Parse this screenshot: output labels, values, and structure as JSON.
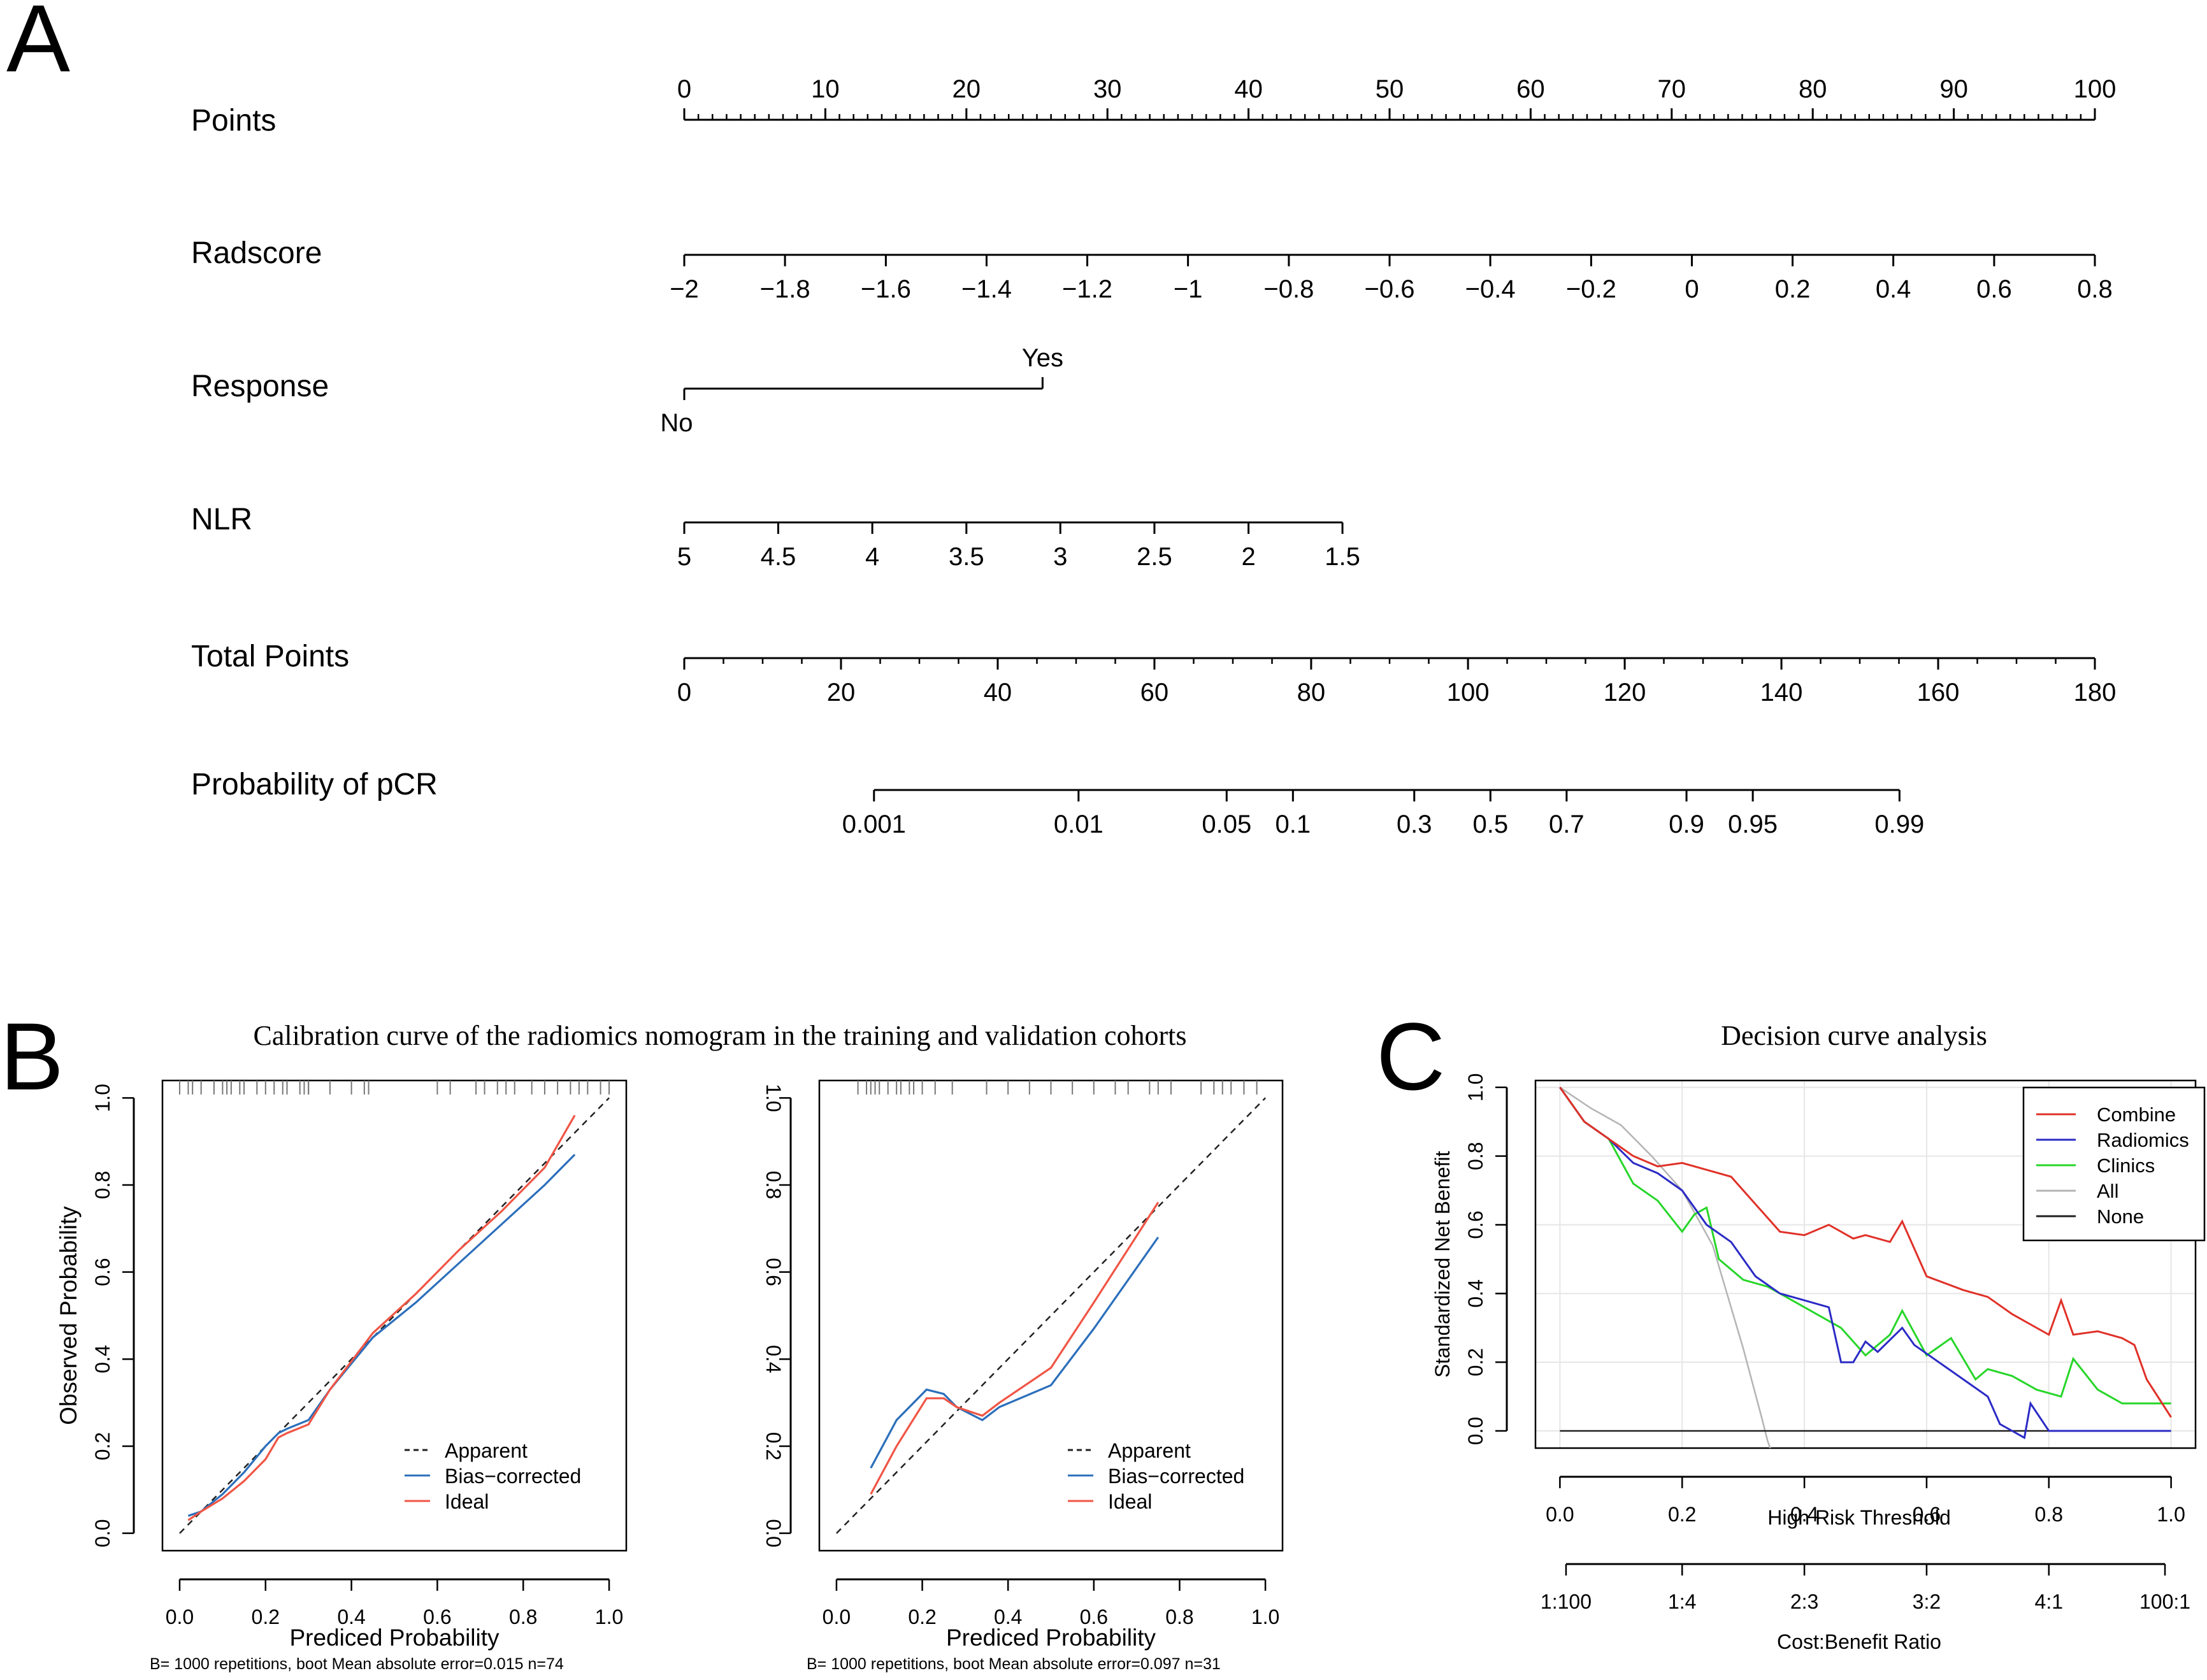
{
  "panels": {
    "a": "A",
    "b": "B",
    "c": "C"
  },
  "chart_data": [
    {
      "type": "nomogram",
      "rows": [
        {
          "label": "Points",
          "ticks": [
            "0",
            "10",
            "20",
            "30",
            "40",
            "50",
            "60",
            "70",
            "80",
            "90",
            "100"
          ],
          "tick_pos": [
            0,
            0.1,
            0.2,
            0.3,
            0.4,
            0.5,
            0.6,
            0.7,
            0.8,
            0.9,
            1.0
          ],
          "side": "above",
          "minor": 100
        },
        {
          "label": "Radscore",
          "ticks": [
            "−2",
            "−1.8",
            "−1.6",
            "−1.4",
            "−1.2",
            "−1",
            "−0.8",
            "−0.6",
            "−0.4",
            "−0.2",
            "0",
            "0.2",
            "0.4",
            "0.6",
            "0.8"
          ],
          "tick_pos": [
            0,
            0.0714,
            0.1429,
            0.2143,
            0.2857,
            0.3571,
            0.4286,
            0.5,
            0.5714,
            0.6429,
            0.7143,
            0.7857,
            0.8571,
            0.9286,
            1.0
          ],
          "side": "below",
          "minor": 0
        },
        {
          "label": "Response",
          "ticks": [
            "No",
            "Yes"
          ],
          "tick_pos": [
            0,
            0.254
          ],
          "side": "alternate",
          "minor": 0
        },
        {
          "label": "NLR",
          "ticks": [
            "5",
            "4.5",
            "4",
            "3.5",
            "3",
            "2.5",
            "2",
            "1.5"
          ],
          "tick_pos": [
            0,
            0.0666,
            0.1333,
            0.2,
            0.2666,
            0.3333,
            0.4,
            0.4666
          ],
          "side": "below",
          "minor": 0
        },
        {
          "label": "Total Points",
          "ticks": [
            "0",
            "20",
            "40",
            "60",
            "80",
            "100",
            "120",
            "140",
            "160",
            "180"
          ],
          "tick_pos": [
            0,
            0.1111,
            0.2222,
            0.3333,
            0.4444,
            0.5556,
            0.6667,
            0.7778,
            0.8889,
            1.0
          ],
          "side": "below",
          "minor": 36
        },
        {
          "label": "Probability of pCR",
          "ticks": [
            "0.001",
            "0.01",
            "0.05",
            "0.1",
            "0.3",
            "0.5",
            "0.7",
            "0.9",
            "0.95",
            "0.99"
          ],
          "tick_pos": [
            0.1345,
            0.2795,
            0.3845,
            0.4315,
            0.5175,
            0.5715,
            0.6255,
            0.7105,
            0.7575,
            0.8615
          ],
          "side": "below",
          "minor": 0
        }
      ]
    },
    {
      "type": "line",
      "title": "Calibration curve of the radiomics nomogram in the training and validation cohorts",
      "xlabel": "Prediced Probability",
      "ylabel": "Observed Probability",
      "xticks": [
        "0.0",
        "0.2",
        "0.4",
        "0.6",
        "0.8",
        "1.0"
      ],
      "yticks": [
        "0.0",
        "0.2",
        "0.4",
        "0.6",
        "0.8",
        "1.0"
      ],
      "xlim": [
        -0.04,
        1.04
      ],
      "ylim": [
        -0.04,
        1.04
      ],
      "legend": [
        "Apparent",
        "Bias−corrected",
        "Ideal"
      ],
      "subplots": [
        {
          "name": "training",
          "footnote": "B= 1000 repetitions, boot    Mean absolute error=0.015 n=74",
          "rug": [
            0.0,
            0.02,
            0.03,
            0.05,
            0.08,
            0.1,
            0.11,
            0.12,
            0.14,
            0.15,
            0.18,
            0.2,
            0.22,
            0.24,
            0.25,
            0.28,
            0.29,
            0.3,
            0.3,
            0.35,
            0.4,
            0.43,
            0.44,
            0.6,
            0.63,
            0.69,
            0.71,
            0.74,
            0.76,
            0.78,
            0.82,
            0.85,
            0.88,
            0.91,
            0.93,
            0.95,
            0.98,
            1.0
          ],
          "series": [
            {
              "name": "Apparent",
              "x": [
                0.0,
                1.0
              ],
              "y": [
                0.0,
                1.0
              ]
            },
            {
              "name": "Bias−corrected",
              "x": [
                0.02,
                0.05,
                0.1,
                0.15,
                0.2,
                0.23,
                0.25,
                0.3,
                0.35,
                0.45,
                0.55,
                0.65,
                0.75,
                0.85,
                0.92
              ],
              "y": [
                0.04,
                0.05,
                0.09,
                0.14,
                0.2,
                0.23,
                0.24,
                0.26,
                0.33,
                0.45,
                0.53,
                0.62,
                0.71,
                0.8,
                0.87
              ]
            },
            {
              "name": "Ideal",
              "x": [
                0.02,
                0.05,
                0.1,
                0.15,
                0.2,
                0.23,
                0.25,
                0.3,
                0.35,
                0.45,
                0.55,
                0.65,
                0.75,
                0.85,
                0.92
              ],
              "y": [
                0.03,
                0.05,
                0.08,
                0.12,
                0.17,
                0.22,
                0.23,
                0.25,
                0.33,
                0.46,
                0.55,
                0.65,
                0.74,
                0.84,
                0.96
              ]
            }
          ]
        },
        {
          "name": "validation",
          "footnote": "B= 1000 repetitions, boot    Mean absolute error=0.097 n=31",
          "rug": [
            0.05,
            0.07,
            0.08,
            0.09,
            0.1,
            0.12,
            0.14,
            0.15,
            0.17,
            0.18,
            0.2,
            0.23,
            0.27,
            0.35,
            0.4,
            0.45,
            0.5,
            0.55,
            0.6,
            0.65,
            0.68,
            0.73,
            0.75,
            0.78,
            0.85,
            0.88,
            0.9,
            0.92,
            0.95,
            0.98
          ],
          "series": [
            {
              "name": "Apparent",
              "x": [
                0.0,
                1.0
              ],
              "y": [
                0.0,
                1.0
              ]
            },
            {
              "name": "Bias−corrected",
              "x": [
                0.08,
                0.14,
                0.21,
                0.25,
                0.28,
                0.34,
                0.38,
                0.5,
                0.6,
                0.75
              ],
              "y": [
                0.15,
                0.26,
                0.33,
                0.32,
                0.29,
                0.26,
                0.29,
                0.34,
                0.47,
                0.68
              ]
            },
            {
              "name": "Ideal",
              "x": [
                0.08,
                0.14,
                0.21,
                0.25,
                0.28,
                0.34,
                0.38,
                0.5,
                0.6,
                0.75
              ],
              "y": [
                0.09,
                0.2,
                0.31,
                0.31,
                0.29,
                0.27,
                0.3,
                0.38,
                0.53,
                0.76
              ]
            }
          ]
        }
      ]
    },
    {
      "type": "line",
      "title": "Decision curve analysis",
      "xlabel": "High Risk Threshold",
      "ylabel": "Standardized Net Benefit",
      "x2label": "Cost:Benefit Ratio",
      "xticks": [
        "0.0",
        "0.2",
        "0.4",
        "0.6",
        "0.8",
        "1.0"
      ],
      "yticks": [
        "0.0",
        "0.2",
        "0.4",
        "0.6",
        "0.8",
        "1.0"
      ],
      "x2ticks": [
        "1:100",
        "1:4",
        "2:3",
        "3:2",
        "4:1",
        "100:1"
      ],
      "x2pos": [
        0.01,
        0.2,
        0.4,
        0.6,
        0.8,
        0.99
      ],
      "xlim": [
        -0.04,
        1.04
      ],
      "ylim": [
        -0.05,
        1.02
      ],
      "legend": [
        "Combine",
        "Radiomics",
        "Clinics",
        "All",
        "None"
      ],
      "colors": {
        "Combine": "#e03128",
        "Radiomics": "#2b2bc6",
        "Clinics": "#27d629",
        "All": "#b4b4b4",
        "None": "#202020"
      },
      "series": [
        {
          "name": "Combine",
          "x": [
            0.0,
            0.04,
            0.08,
            0.12,
            0.16,
            0.2,
            0.24,
            0.28,
            0.32,
            0.36,
            0.4,
            0.44,
            0.48,
            0.5,
            0.54,
            0.56,
            0.6,
            0.66,
            0.7,
            0.74,
            0.76,
            0.8,
            0.82,
            0.84,
            0.88,
            0.92,
            0.94,
            0.96,
            1.0
          ],
          "y": [
            1.0,
            0.9,
            0.85,
            0.8,
            0.77,
            0.78,
            0.76,
            0.74,
            0.66,
            0.58,
            0.57,
            0.6,
            0.56,
            0.57,
            0.55,
            0.61,
            0.45,
            0.41,
            0.39,
            0.34,
            0.32,
            0.28,
            0.38,
            0.28,
            0.29,
            0.27,
            0.25,
            0.15,
            0.04
          ]
        },
        {
          "name": "Radiomics",
          "x": [
            0.0,
            0.04,
            0.08,
            0.12,
            0.16,
            0.2,
            0.24,
            0.28,
            0.32,
            0.36,
            0.4,
            0.44,
            0.46,
            0.48,
            0.5,
            0.52,
            0.56,
            0.58,
            0.62,
            0.66,
            0.7,
            0.72,
            0.74,
            0.76,
            0.77,
            0.8,
            1.0
          ],
          "y": [
            1.0,
            0.9,
            0.85,
            0.78,
            0.75,
            0.7,
            0.6,
            0.55,
            0.45,
            0.4,
            0.38,
            0.36,
            0.2,
            0.2,
            0.26,
            0.23,
            0.3,
            0.25,
            0.2,
            0.15,
            0.1,
            0.02,
            0.0,
            -0.02,
            0.08,
            0.0,
            0.0
          ]
        },
        {
          "name": "Clinics",
          "x": [
            0.0,
            0.04,
            0.08,
            0.12,
            0.16,
            0.2,
            0.22,
            0.24,
            0.26,
            0.3,
            0.34,
            0.38,
            0.42,
            0.46,
            0.5,
            0.54,
            0.56,
            0.6,
            0.64,
            0.68,
            0.7,
            0.74,
            0.78,
            0.82,
            0.84,
            0.88,
            0.92,
            1.0
          ],
          "y": [
            1.0,
            0.9,
            0.85,
            0.72,
            0.67,
            0.58,
            0.63,
            0.65,
            0.5,
            0.44,
            0.42,
            0.38,
            0.34,
            0.3,
            0.22,
            0.28,
            0.35,
            0.22,
            0.27,
            0.15,
            0.18,
            0.16,
            0.12,
            0.1,
            0.21,
            0.12,
            0.08,
            0.08
          ]
        },
        {
          "name": "All",
          "x": [
            0.0,
            0.05,
            0.1,
            0.15,
            0.2,
            0.25,
            0.3,
            0.33,
            0.34,
            0.35
          ],
          "y": [
            1.0,
            0.94,
            0.89,
            0.8,
            0.7,
            0.54,
            0.24,
            0.04,
            -0.03,
            -0.08
          ]
        },
        {
          "name": "None",
          "x": [
            0.0,
            1.0
          ],
          "y": [
            0.0,
            0.0
          ]
        }
      ]
    }
  ]
}
